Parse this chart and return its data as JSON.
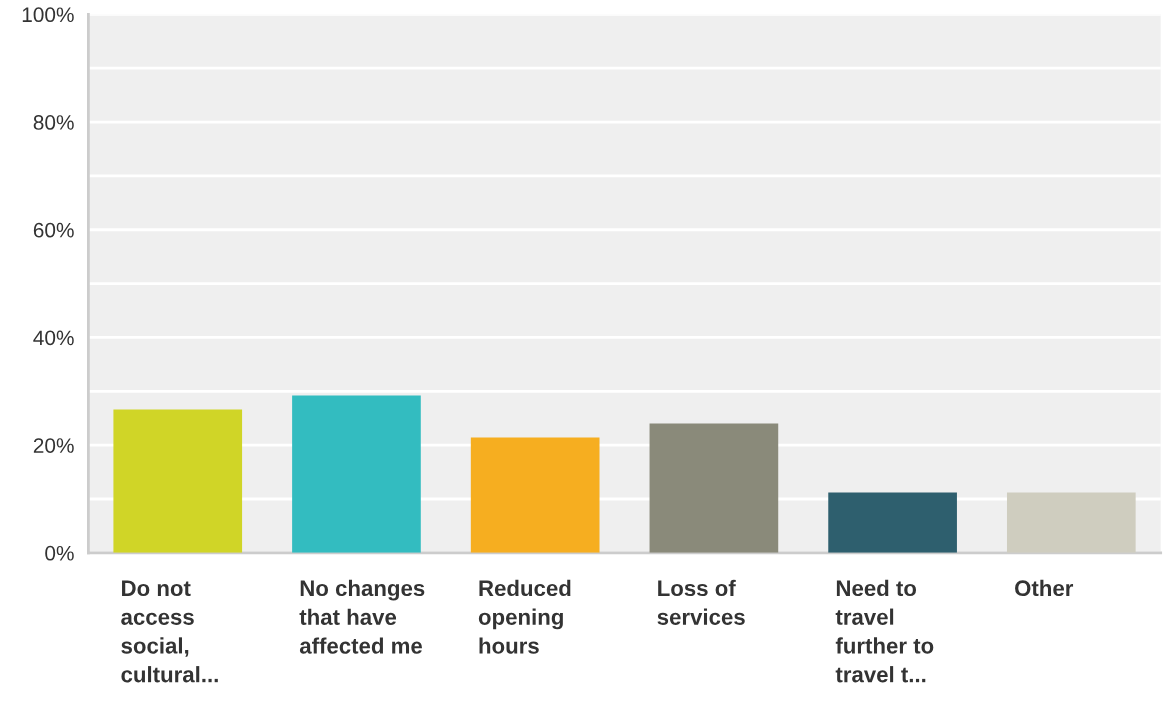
{
  "chart_data": {
    "type": "bar",
    "categories": [
      "Do not\naccess\nsocial,\ncultural...",
      "No changes\nthat have\naffected me",
      "Reduced\nopening\nhours",
      "Loss of\nservices",
      "Need to\ntravel\nfurther to\ntravel t...",
      "Other"
    ],
    "values": [
      26.6,
      29.2,
      21.4,
      24.0,
      11.2,
      11.2
    ],
    "colors": [
      "#d0d527",
      "#33bcc0",
      "#f6ae20",
      "#8a8a7a",
      "#2e5f6e",
      "#cfcdbf"
    ],
    "ylim": [
      0,
      100
    ],
    "yticks": [
      {
        "value": 0,
        "label": "0%"
      },
      {
        "value": 10,
        "label": null
      },
      {
        "value": 20,
        "label": "20%"
      },
      {
        "value": 30,
        "label": null
      },
      {
        "value": 40,
        "label": "40%"
      },
      {
        "value": 50,
        "label": null
      },
      {
        "value": 60,
        "label": "60%"
      },
      {
        "value": 70,
        "label": null
      },
      {
        "value": 80,
        "label": "80%"
      },
      {
        "value": 90,
        "label": null
      },
      {
        "value": 100,
        "label": "100%"
      }
    ],
    "grid": "y"
  }
}
